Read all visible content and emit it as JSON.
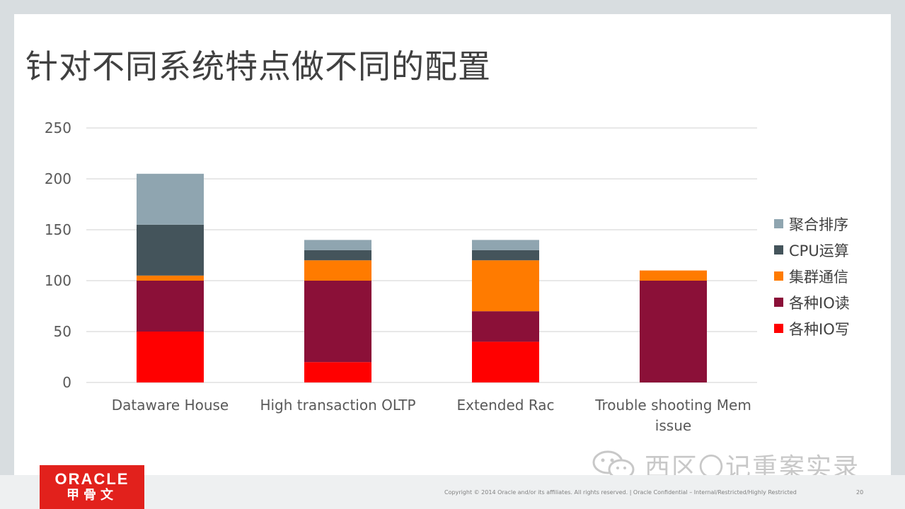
{
  "slide": {
    "title": "针对不同系统特点做不同的配置"
  },
  "chart_data": {
    "type": "bar",
    "stacked": true,
    "categories": [
      "Dataware House",
      "High transaction OLTP",
      "Extended Rac",
      "Trouble shooting Mem issue"
    ],
    "category_lines": [
      [
        "Dataware House"
      ],
      [
        "High transaction OLTP"
      ],
      [
        "Extended Rac"
      ],
      [
        "Trouble shooting Mem",
        "issue"
      ]
    ],
    "series": [
      {
        "name": "各种IO写",
        "color": "#ff0000",
        "values": [
          50,
          20,
          40,
          0
        ]
      },
      {
        "name": "各种IO读",
        "color": "#8b1038",
        "values": [
          50,
          80,
          30,
          100
        ]
      },
      {
        "name": "集群通信",
        "color": "#ff7b00",
        "values": [
          5,
          20,
          50,
          10
        ]
      },
      {
        "name": "CPU运算",
        "color": "#44545b",
        "values": [
          50,
          10,
          10,
          0
        ]
      },
      {
        "name": "聚合排序",
        "color": "#8fa5b0",
        "values": [
          50,
          10,
          10,
          0
        ]
      }
    ],
    "legend_order": [
      "聚合排序",
      "CPU运算",
      "集群通信",
      "各种IO读",
      "各种IO写"
    ],
    "yticks": [
      0,
      50,
      100,
      150,
      200,
      250
    ],
    "ylim": [
      0,
      250
    ],
    "grid": true,
    "legend_position": "right",
    "title": "",
    "xlabel": "",
    "ylabel": ""
  },
  "watermark": {
    "text": "西区〇记重案实录",
    "icon": "wechat-icon"
  },
  "footer": {
    "brand": "ORACLE",
    "brand_cn": "甲骨文",
    "copyright": "Copyright © 2014 Oracle and/or its affiliates. All rights reserved.  |  Oracle Confidential – Internal/Restricted/Highly Restricted",
    "page_number": "20"
  }
}
